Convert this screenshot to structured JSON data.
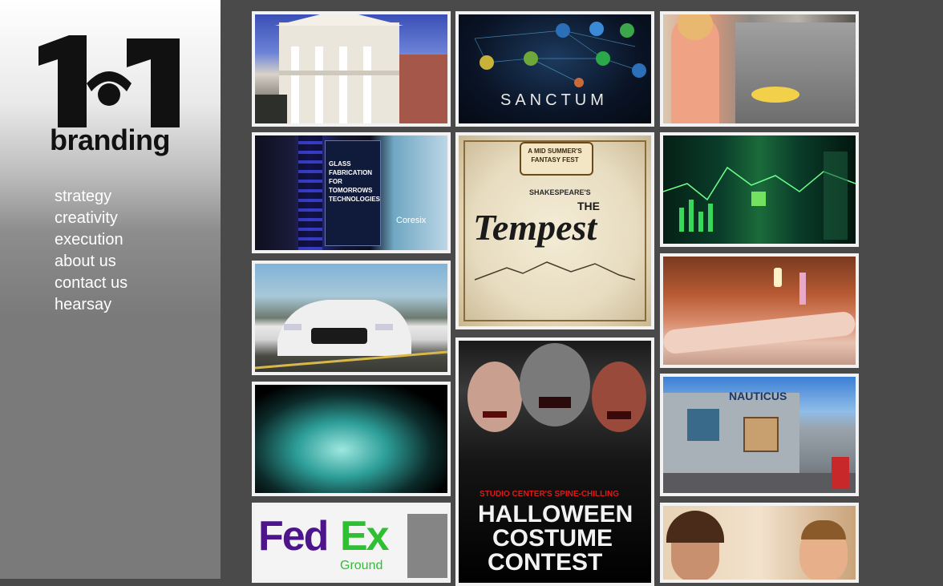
{
  "sidebar": {
    "logo_text": "branding",
    "nav": [
      "strategy",
      "creativity",
      "execution",
      "about us",
      "contact us",
      "hearsay"
    ]
  },
  "tiles": {
    "sanctum_title": "SANCTUM",
    "glass_title": "GLASS FABRICATION FOR TOMORROWS TECHNOLOGIES",
    "glass_brand": "Coresix",
    "tempest_banner": "A MID SUMMER'S FANTASY FEST",
    "tempest_byline": "SHAKESPEARE'S",
    "tempest_the": "THE",
    "tempest_title": "Tempest",
    "halloween_kicker": "STUDIO CENTER'S SPINE-CHILLING",
    "halloween_line1": "HALLOWEEN",
    "halloween_line2": "COSTUME",
    "halloween_line3": "CONTEST",
    "fedex_fed": "Fed",
    "fedex_ex": "Ex",
    "fedex_ground": "Ground",
    "nauticus_sign": "NAUTICUS"
  },
  "colors": {
    "page_bg": "#4a4a4a",
    "tile_border": "#f2f2f2",
    "fedex_purple": "#4d148c",
    "fedex_green": "#2fbf32",
    "halloween_red": "#e01818"
  }
}
